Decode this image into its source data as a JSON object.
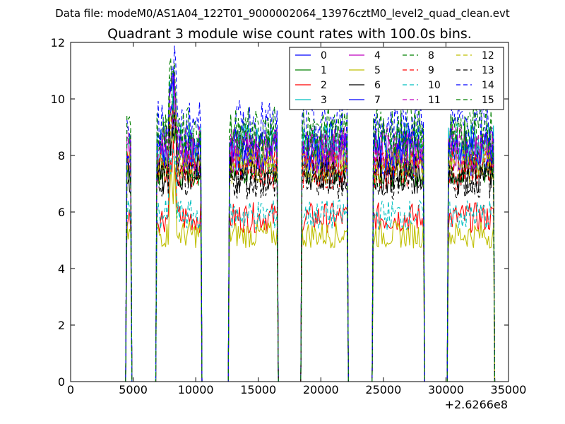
{
  "figure": {
    "suptitle": "Data file: modeM0/AS1A04_122T01_9000002064_13976cztM0_level2_quad_clean.evt"
  },
  "chart_data": {
    "type": "line",
    "title": "Quadrant 3 module wise count rates with 100.0s bins.",
    "xlabel": "",
    "ylabel": "",
    "x_offset_label": "+2.6266e8",
    "xlim": [
      0,
      35000
    ],
    "ylim": [
      0,
      12
    ],
    "xticks": [
      0,
      5000,
      10000,
      15000,
      20000,
      25000,
      30000,
      35000
    ],
    "yticks": [
      0,
      2,
      4,
      6,
      8,
      10,
      12
    ],
    "grid": false,
    "legend_position": "top-right",
    "legend_columns": 4,
    "segments": [
      [
        4500,
        4800
      ],
      [
        6900,
        10400
      ],
      [
        12700,
        16500
      ],
      [
        18500,
        22100
      ],
      [
        24200,
        28200
      ],
      [
        30200,
        33800
      ]
    ],
    "series": [
      {
        "name": "0",
        "color": "#0000ff",
        "dash": "solid",
        "level": 7.9
      },
      {
        "name": "1",
        "color": "#008000",
        "dash": "solid",
        "level": 7.6
      },
      {
        "name": "2",
        "color": "#ff0000",
        "dash": "solid",
        "level": 5.8
      },
      {
        "name": "3",
        "color": "#00bfbf",
        "dash": "solid",
        "level": 8.4
      },
      {
        "name": "4",
        "color": "#bf00bf",
        "dash": "solid",
        "level": 8.1
      },
      {
        "name": "5",
        "color": "#bfbf00",
        "dash": "solid",
        "level": 5.2
      },
      {
        "name": "6",
        "color": "#000000",
        "dash": "solid",
        "level": 7.3
      },
      {
        "name": "7",
        "color": "#0000ff",
        "dash": "solid",
        "level": 8.2
      },
      {
        "name": "8",
        "color": "#008000",
        "dash": "dashed",
        "level": 8.6
      },
      {
        "name": "9",
        "color": "#ff0000",
        "dash": "dashed",
        "level": 7.5
      },
      {
        "name": "10",
        "color": "#00bfbf",
        "dash": "dashed",
        "level": 5.9
      },
      {
        "name": "11",
        "color": "#bf00bf",
        "dash": "dashed",
        "level": 8.3
      },
      {
        "name": "12",
        "color": "#bfbf00",
        "dash": "dashed",
        "level": 7.7
      },
      {
        "name": "13",
        "color": "#000000",
        "dash": "dashed",
        "level": 7.1
      },
      {
        "name": "14",
        "color": "#0000ff",
        "dash": "dashed",
        "level": 9.1
      },
      {
        "name": "15",
        "color": "#008000",
        "dash": "dashed",
        "level": 8.9
      }
    ]
  }
}
